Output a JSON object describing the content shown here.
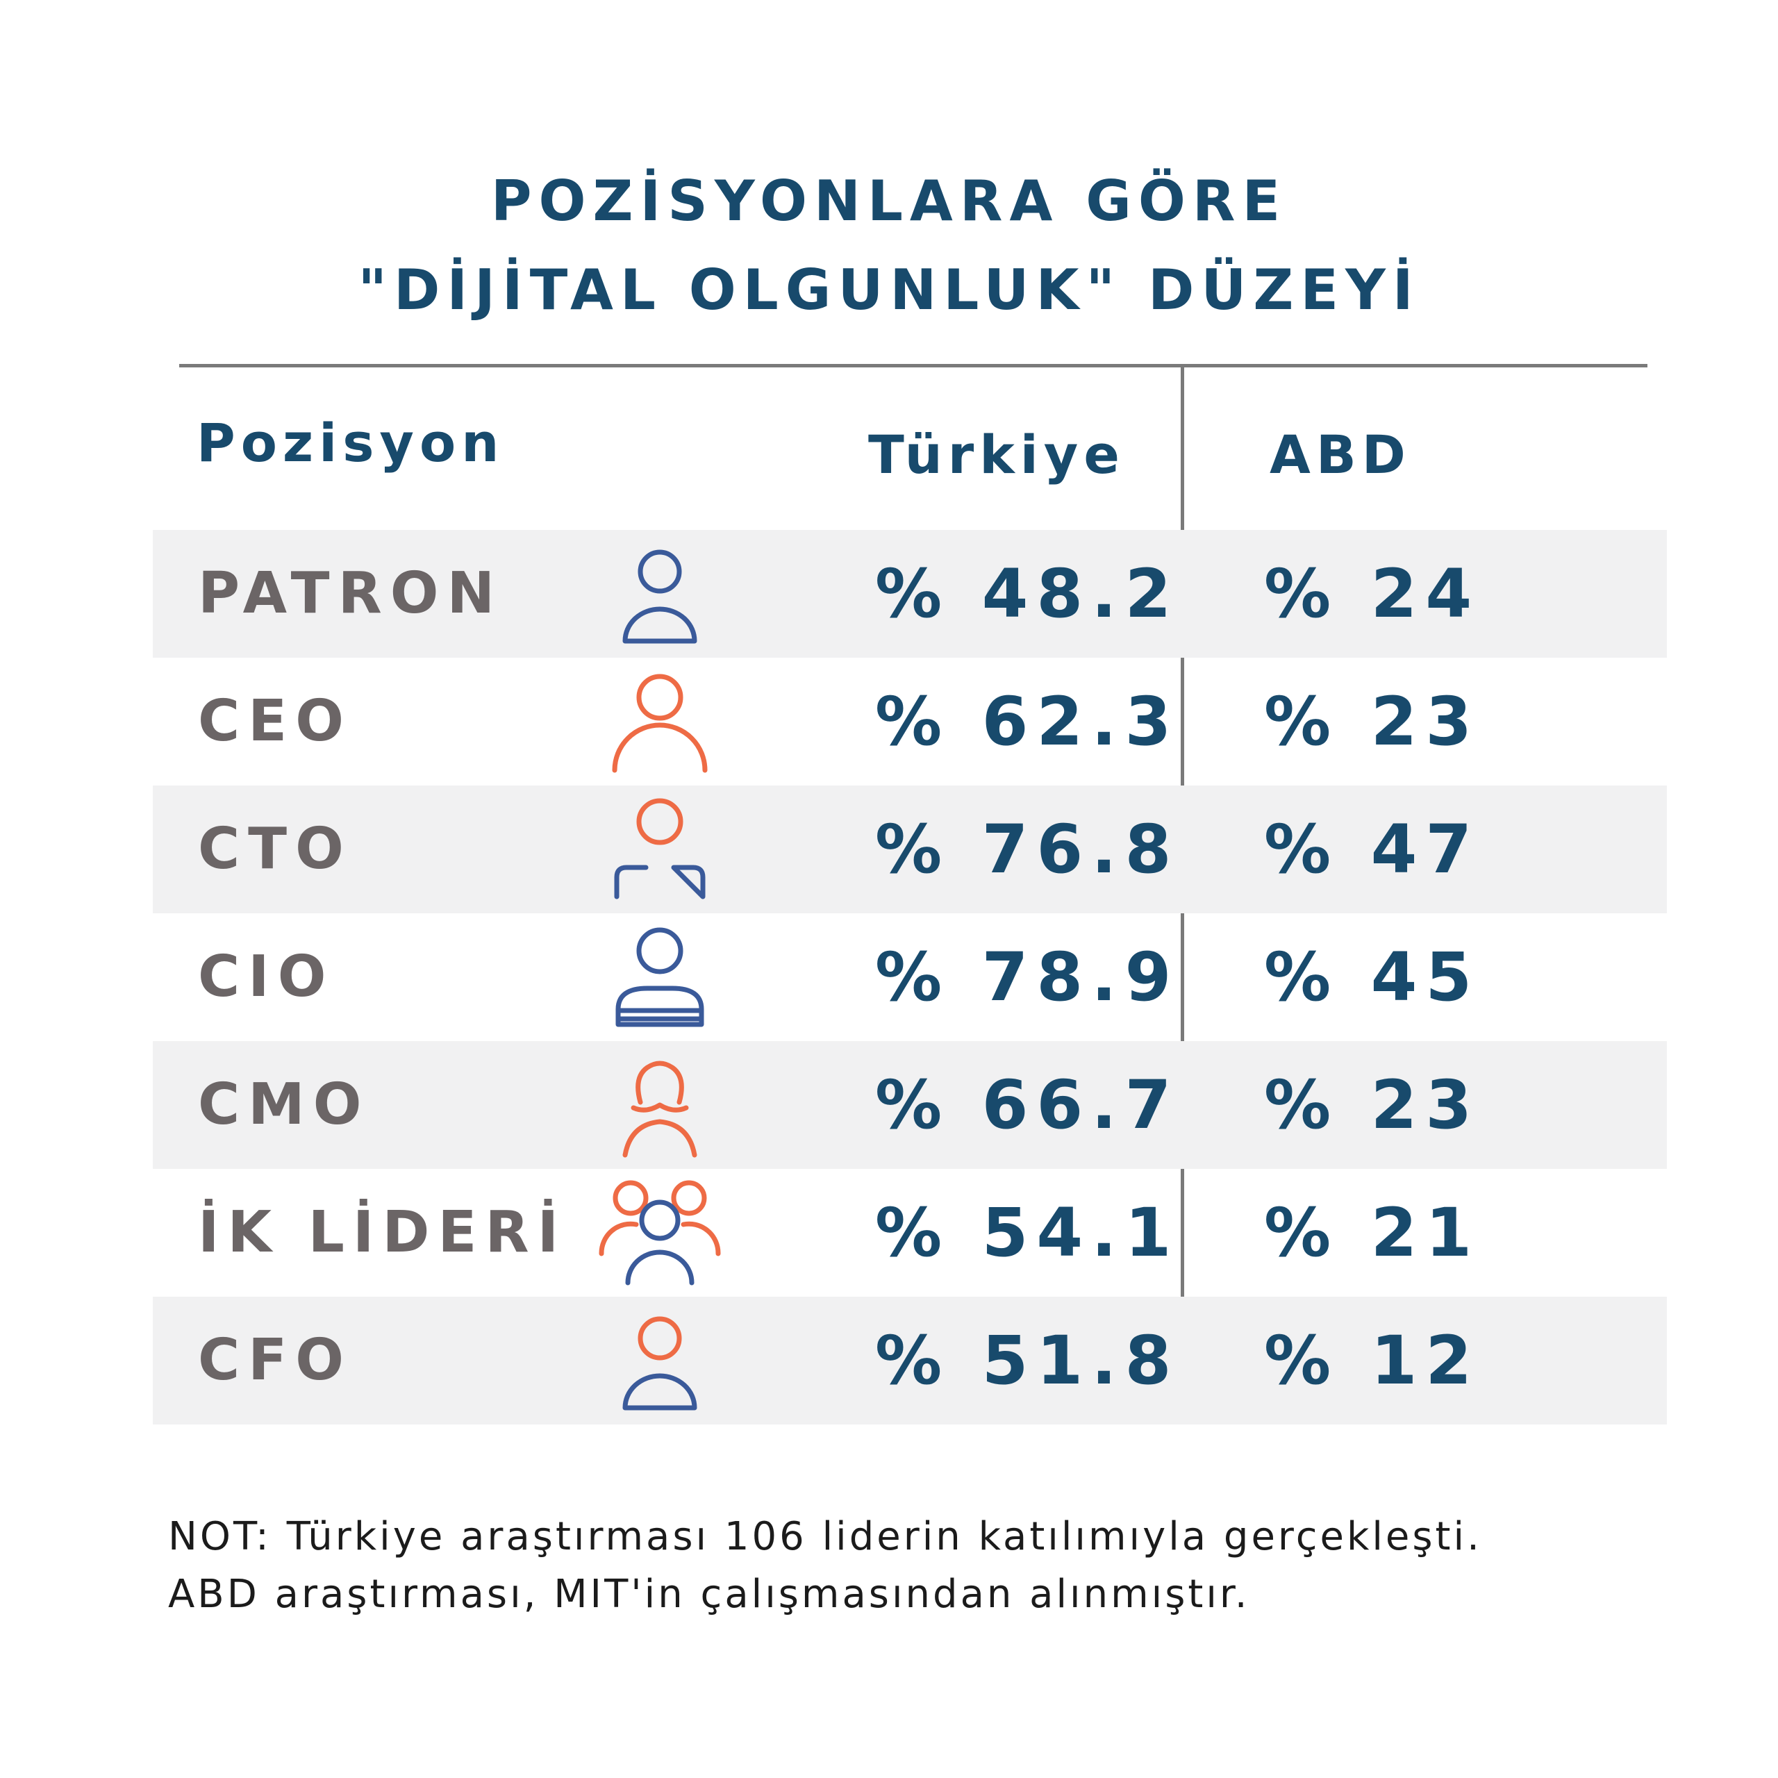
{
  "chart_data": {
    "type": "table",
    "title_lines": [
      "POZİSYONLARA GÖRE",
      "\"DİJİTAL OLGUNLUK\" DÜZEYİ"
    ],
    "columns": [
      "Pozisyon",
      "Türkiye",
      "ABD"
    ],
    "rows": [
      {
        "position": "PATRON",
        "turkiye": "% 48.2",
        "abd": "% 24",
        "turkiye_value": 48.2,
        "abd_value": 24,
        "icon": "person-icon",
        "icon_colors": {
          "head": "#3a5a9a",
          "body": "#3a5a9a"
        },
        "icon_style": "classic"
      },
      {
        "position": "CEO",
        "turkiye": "% 62.3",
        "abd": "% 23",
        "turkiye_value": 62.3,
        "abd_value": 23,
        "icon": "person-icon",
        "icon_colors": {
          "head": "#ee6b45",
          "body": "#ee6b45"
        },
        "icon_style": "arc"
      },
      {
        "position": "CTO",
        "turkiye": "% 76.8",
        "abd": "% 47",
        "turkiye_value": 76.8,
        "abd_value": 47,
        "icon": "person-icon",
        "icon_colors": {
          "head": "#ee6b45",
          "body": "#3a5a9a"
        },
        "icon_style": "box"
      },
      {
        "position": "CIO",
        "turkiye": "% 78.9",
        "abd": "% 45",
        "turkiye_value": 78.9,
        "abd_value": 45,
        "icon": "person-icon",
        "icon_colors": {
          "head": "#3a5a9a",
          "body": "#3a5a9a"
        },
        "icon_style": "striped"
      },
      {
        "position": "CMO",
        "turkiye": "% 66.7",
        "abd": "% 23",
        "turkiye_value": 66.7,
        "abd_value": 23,
        "icon": "woman-icon",
        "icon_colors": {
          "head": "#ee6b45",
          "body": "#ee6b45"
        },
        "icon_style": "woman"
      },
      {
        "position": "İK LİDERİ",
        "turkiye": "% 54.1",
        "abd": "% 21",
        "turkiye_value": 54.1,
        "abd_value": 21,
        "icon": "group-icon",
        "icon_colors": {
          "head": "#3a5a9a",
          "body": "#ee6b45"
        },
        "icon_style": "group"
      },
      {
        "position": "CFO",
        "turkiye": "% 51.8",
        "abd": "% 12",
        "turkiye_value": 51.8,
        "abd_value": 12,
        "icon": "person-icon",
        "icon_colors": {
          "head": "#ee6b45",
          "body": "#3a5a9a"
        },
        "icon_style": "classic"
      }
    ]
  },
  "notes": [
    "NOT: Türkiye araştırması 106 liderin katılımıyla gerçekleşti.",
    "ABD araştırması, MIT'in çalışmasından alınmıştır."
  ],
  "colors": {
    "title": "#184a6c",
    "label": "#6b6566",
    "row_shade": "#f1f1f2",
    "rule": "#7a7a7a",
    "blue_icon": "#3a5a9a",
    "orange_icon": "#ee6b45"
  }
}
